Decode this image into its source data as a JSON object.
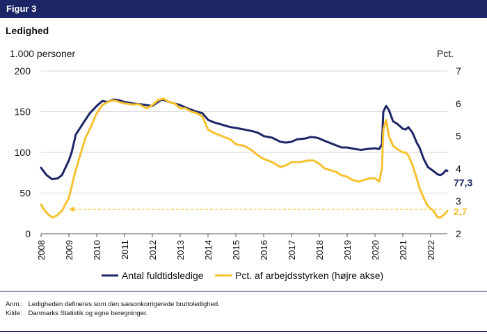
{
  "header": {
    "figure_label": "Figur 3"
  },
  "chart_title": "Ledighed",
  "notes": {
    "anm_label": "Anm.:",
    "anm_text": "Ledigheden defineres som den sæsonkorrigerede bruttoledighed.",
    "kilde_label": "Kilde:",
    "kilde_text": "Danmarks Statistik og egne beregninger."
  },
  "chart_data": {
    "type": "line",
    "title": "Ledighed",
    "xlabel": "",
    "left_axis": {
      "label": "1.000 personer",
      "ylim": [
        0,
        200
      ],
      "ticks": [
        0,
        50,
        100,
        150,
        200
      ]
    },
    "right_axis": {
      "label": "Pct.",
      "ylim": [
        2,
        7
      ],
      "ticks": [
        2,
        3,
        4,
        5,
        6,
        7
      ]
    },
    "xlim": [
      2008,
      2022.6
    ],
    "x_ticks": [
      "2008",
      "2009",
      "2010",
      "2011",
      "2012",
      "2013",
      "2014",
      "2015",
      "2016",
      "2017",
      "2018",
      "2019",
      "2020",
      "2021",
      "2022"
    ],
    "grid": "horizontal",
    "colors": {
      "navy": "#1c2566",
      "yellow": "#f6c12f"
    },
    "series": [
      {
        "name": "Antal fuldtidsledige",
        "axis": "left",
        "color": "#1c2566",
        "end_label": "77,3",
        "points": [
          [
            2008.0,
            81
          ],
          [
            2008.2,
            72
          ],
          [
            2008.4,
            67
          ],
          [
            2008.6,
            68
          ],
          [
            2008.75,
            72
          ],
          [
            2009.0,
            90
          ],
          [
            2009.1,
            100
          ],
          [
            2009.25,
            122
          ],
          [
            2009.5,
            135
          ],
          [
            2009.75,
            148
          ],
          [
            2010.0,
            157
          ],
          [
            2010.2,
            163
          ],
          [
            2010.4,
            162
          ],
          [
            2010.6,
            165
          ],
          [
            2010.8,
            164
          ],
          [
            2011.0,
            162
          ],
          [
            2011.3,
            160
          ],
          [
            2011.6,
            159
          ],
          [
            2011.8,
            158
          ],
          [
            2012.0,
            157
          ],
          [
            2012.2,
            162
          ],
          [
            2012.35,
            165
          ],
          [
            2012.6,
            162
          ],
          [
            2012.8,
            160
          ],
          [
            2013.0,
            158
          ],
          [
            2013.2,
            155
          ],
          [
            2013.5,
            151
          ],
          [
            2013.8,
            148
          ],
          [
            2014.0,
            140
          ],
          [
            2014.2,
            137
          ],
          [
            2014.5,
            134
          ],
          [
            2014.8,
            131
          ],
          [
            2015.0,
            130
          ],
          [
            2015.3,
            128
          ],
          [
            2015.6,
            126
          ],
          [
            2015.8,
            124
          ],
          [
            2016.0,
            120
          ],
          [
            2016.3,
            118
          ],
          [
            2016.6,
            113
          ],
          [
            2016.8,
            112
          ],
          [
            2017.0,
            113
          ],
          [
            2017.2,
            116
          ],
          [
            2017.5,
            117
          ],
          [
            2017.7,
            119
          ],
          [
            2017.9,
            118
          ],
          [
            2018.0,
            117
          ],
          [
            2018.2,
            114
          ],
          [
            2018.5,
            110
          ],
          [
            2018.8,
            106
          ],
          [
            2019.0,
            106
          ],
          [
            2019.3,
            104
          ],
          [
            2019.5,
            103
          ],
          [
            2019.7,
            104
          ],
          [
            2020.0,
            105
          ],
          [
            2020.15,
            104
          ],
          [
            2020.25,
            110
          ],
          [
            2020.3,
            150
          ],
          [
            2020.4,
            157
          ],
          [
            2020.5,
            152
          ],
          [
            2020.65,
            138
          ],
          [
            2020.8,
            135
          ],
          [
            2021.0,
            129
          ],
          [
            2021.1,
            128
          ],
          [
            2021.2,
            131
          ],
          [
            2021.35,
            124
          ],
          [
            2021.5,
            112
          ],
          [
            2021.6,
            106
          ],
          [
            2021.75,
            92
          ],
          [
            2021.9,
            82
          ],
          [
            2022.1,
            77
          ],
          [
            2022.25,
            73
          ],
          [
            2022.35,
            72
          ],
          [
            2022.45,
            74
          ],
          [
            2022.55,
            78
          ],
          [
            2022.6,
            77.3
          ]
        ]
      },
      {
        "name": "Pct. af arbejdsstyrken (højre akse)",
        "axis": "right",
        "color": "#f6c12f",
        "end_label": "2,7",
        "points": [
          [
            2008.0,
            2.9
          ],
          [
            2008.1,
            2.75
          ],
          [
            2008.25,
            2.6
          ],
          [
            2008.4,
            2.5
          ],
          [
            2008.55,
            2.55
          ],
          [
            2008.75,
            2.7
          ],
          [
            2009.0,
            3.1
          ],
          [
            2009.2,
            3.8
          ],
          [
            2009.4,
            4.4
          ],
          [
            2009.6,
            4.95
          ],
          [
            2009.8,
            5.3
          ],
          [
            2010.0,
            5.7
          ],
          [
            2010.2,
            5.95
          ],
          [
            2010.4,
            6.05
          ],
          [
            2010.6,
            6.1
          ],
          [
            2010.8,
            6.05
          ],
          [
            2011.0,
            6.0
          ],
          [
            2011.3,
            5.97
          ],
          [
            2011.5,
            5.98
          ],
          [
            2011.8,
            5.85
          ],
          [
            2012.0,
            5.95
          ],
          [
            2012.2,
            6.1
          ],
          [
            2012.4,
            6.15
          ],
          [
            2012.6,
            6.05
          ],
          [
            2012.8,
            6.0
          ],
          [
            2013.0,
            5.85
          ],
          [
            2013.2,
            5.85
          ],
          [
            2013.4,
            5.75
          ],
          [
            2013.6,
            5.7
          ],
          [
            2013.8,
            5.6
          ],
          [
            2014.0,
            5.2
          ],
          [
            2014.2,
            5.1
          ],
          [
            2014.5,
            5.0
          ],
          [
            2014.8,
            4.9
          ],
          [
            2015.0,
            4.75
          ],
          [
            2015.3,
            4.7
          ],
          [
            2015.6,
            4.55
          ],
          [
            2015.8,
            4.4
          ],
          [
            2016.0,
            4.3
          ],
          [
            2016.3,
            4.2
          ],
          [
            2016.6,
            4.05
          ],
          [
            2016.8,
            4.1
          ],
          [
            2017.0,
            4.2
          ],
          [
            2017.3,
            4.2
          ],
          [
            2017.6,
            4.25
          ],
          [
            2017.8,
            4.25
          ],
          [
            2018.0,
            4.15
          ],
          [
            2018.2,
            4.0
          ],
          [
            2018.4,
            3.95
          ],
          [
            2018.6,
            3.9
          ],
          [
            2018.8,
            3.8
          ],
          [
            2019.0,
            3.75
          ],
          [
            2019.2,
            3.65
          ],
          [
            2019.4,
            3.6
          ],
          [
            2019.6,
            3.65
          ],
          [
            2019.8,
            3.7
          ],
          [
            2020.0,
            3.7
          ],
          [
            2020.15,
            3.6
          ],
          [
            2020.25,
            4.0
          ],
          [
            2020.3,
            5.2
          ],
          [
            2020.4,
            5.5
          ],
          [
            2020.5,
            5.0
          ],
          [
            2020.65,
            4.7
          ],
          [
            2020.8,
            4.6
          ],
          [
            2021.0,
            4.5
          ],
          [
            2021.1,
            4.5
          ],
          [
            2021.2,
            4.4
          ],
          [
            2021.35,
            4.1
          ],
          [
            2021.5,
            3.7
          ],
          [
            2021.6,
            3.4
          ],
          [
            2021.75,
            3.1
          ],
          [
            2021.9,
            2.85
          ],
          [
            2022.1,
            2.7
          ],
          [
            2022.25,
            2.5
          ],
          [
            2022.35,
            2.5
          ],
          [
            2022.5,
            2.6
          ],
          [
            2022.6,
            2.7
          ]
        ]
      }
    ],
    "annotations": [
      {
        "type": "dashed-arrow",
        "color": "#f6c12f",
        "from": [
          2022.4,
          2.75
        ],
        "to": [
          2009.0,
          2.75
        ],
        "axis": "right"
      }
    ],
    "legend": {
      "placement": "bottom"
    }
  }
}
